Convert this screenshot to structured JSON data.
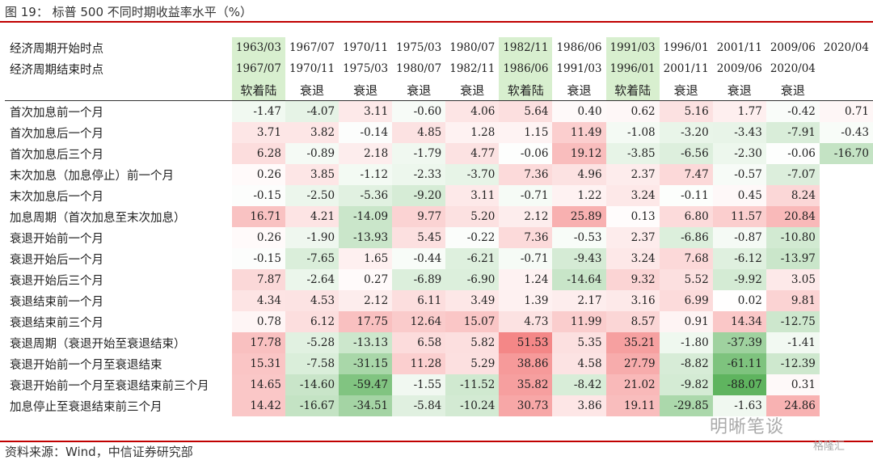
{
  "title": "图 19：   标普 500 不同时期收益率水平（%）",
  "source": "资料来源：Wind，中信证券研究部",
  "watermark": "明晰笔谈",
  "watermark2": "格隆汇",
  "header_rows": [
    {
      "label": "经济周期开始时点",
      "cells": [
        "1963/03",
        "1967/07",
        "1970/11",
        "1975/03",
        "1980/07",
        "1982/11",
        "1986/06",
        "1991/03",
        "1996/01",
        "2001/11",
        "2009/06",
        "2020/04"
      ]
    },
    {
      "label": "经济周期结束时点",
      "cells": [
        "1967/07",
        "1970/11",
        "1975/03",
        "1980/07",
        "1982/11",
        "1986/06",
        "1991/03",
        "1996/01",
        "2001/11",
        "2009/06",
        "2020/04",
        ""
      ]
    },
    {
      "label": "",
      "cells": [
        "软着陆",
        "衰退",
        "衰退",
        "衰退",
        "衰退",
        "软着陆",
        "衰退",
        "软着陆",
        "衰退",
        "衰退",
        "衰退",
        ""
      ]
    }
  ],
  "soft_landing_color": "#d8efcf",
  "rows": [
    {
      "label": "首次加息前一个月",
      "values": [
        -1.47,
        -4.07,
        3.11,
        -0.6,
        4.06,
        5.64,
        0.4,
        0.62,
        5.16,
        1.77,
        -0.42,
        0.71
      ]
    },
    {
      "label": "首次加息后一个月",
      "values": [
        3.71,
        3.82,
        -0.14,
        4.85,
        1.28,
        1.15,
        11.49,
        -1.08,
        -3.2,
        -3.43,
        -7.91,
        -0.43
      ]
    },
    {
      "label": "首次加息后三个月",
      "values": [
        6.28,
        -0.89,
        2.18,
        -1.79,
        4.77,
        -0.06,
        19.12,
        -3.85,
        -6.56,
        -2.3,
        -0.06,
        -16.7
      ]
    },
    {
      "label": "末次加息（加息停止）前一个月",
      "values": [
        0.26,
        3.85,
        -1.12,
        -2.33,
        -3.7,
        7.36,
        4.96,
        2.37,
        7.47,
        -0.57,
        -7.07,
        null
      ]
    },
    {
      "label": "末次加息后一个月",
      "values": [
        -0.15,
        -2.5,
        -5.36,
        -9.2,
        3.11,
        -0.71,
        1.22,
        3.24,
        -0.11,
        0.45,
        8.24,
        null
      ]
    },
    {
      "label": "加息周期（首次加息至末次加息）",
      "values": [
        16.71,
        4.21,
        -14.09,
        9.77,
        5.2,
        2.12,
        25.89,
        0.13,
        6.8,
        11.57,
        20.84,
        null
      ]
    },
    {
      "label": "衰退开始前一个月",
      "values": [
        0.26,
        -1.9,
        -13.93,
        5.45,
        -0.22,
        7.36,
        -0.53,
        2.37,
        -6.86,
        -0.87,
        -10.8,
        null
      ]
    },
    {
      "label": "衰退开始后一个月",
      "values": [
        -0.15,
        -7.65,
        1.65,
        -0.44,
        -6.21,
        -0.71,
        -9.43,
        3.24,
        7.68,
        -6.12,
        -13.97,
        null
      ]
    },
    {
      "label": "衰退开始后三个月",
      "values": [
        7.87,
        -2.64,
        0.27,
        -6.89,
        -6.9,
        1.24,
        -14.64,
        9.32,
        5.52,
        -9.92,
        3.05,
        null
      ]
    },
    {
      "label": "衰退结束前一个月",
      "values": [
        4.34,
        4.53,
        2.12,
        6.11,
        3.49,
        1.39,
        2.17,
        3.16,
        6.99,
        0.02,
        9.81,
        null
      ]
    },
    {
      "label": "衰退结束前三个月",
      "values": [
        0.78,
        6.12,
        17.75,
        12.64,
        15.07,
        4.73,
        11.99,
        8.57,
        0.91,
        14.34,
        -12.75,
        null
      ]
    },
    {
      "label": "衰退周期（衰退开始至衰退结束）",
      "values": [
        17.78,
        -5.28,
        -13.13,
        6.58,
        5.82,
        51.53,
        5.35,
        35.21,
        -1.8,
        -37.39,
        -1.41,
        null
      ]
    },
    {
      "label": "衰退开始前一个月至衰退结束",
      "values": [
        15.31,
        -7.58,
        -31.15,
        11.28,
        5.29,
        38.86,
        4.58,
        27.79,
        -8.82,
        -61.11,
        -12.39,
        null
      ]
    },
    {
      "label": "衰退开始前一个月至衰退结束前三个月",
      "values": [
        14.65,
        -14.6,
        -59.47,
        -1.55,
        -11.52,
        35.82,
        -8.42,
        21.02,
        -9.82,
        -88.07,
        0.31,
        null
      ]
    },
    {
      "label": "加息停止至衰退结束前三个月",
      "values": [
        14.42,
        -16.67,
        -34.51,
        -5.84,
        -10.24,
        30.73,
        3.86,
        19.11,
        -29.85,
        -1.63,
        24.86,
        null
      ]
    }
  ]
}
